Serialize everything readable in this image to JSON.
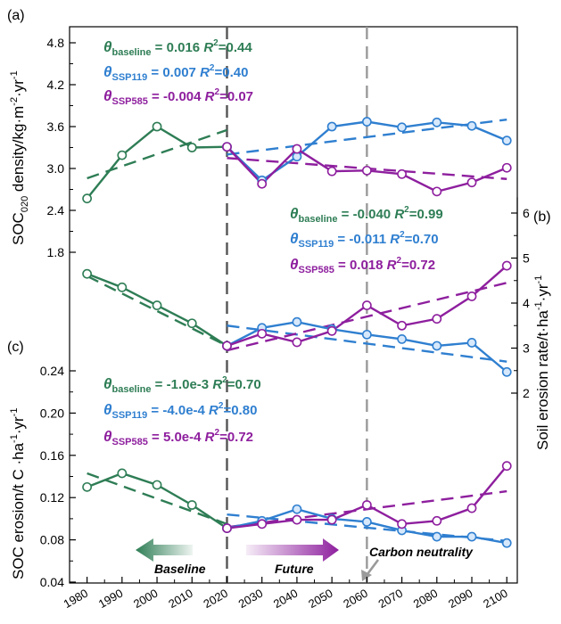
{
  "x_axis": {
    "ticks": [
      1980,
      1990,
      2000,
      2010,
      2020,
      2030,
      2040,
      2050,
      2060,
      2070,
      2080,
      2090,
      2100
    ]
  },
  "colors": {
    "baseline": "#2e7d55",
    "ssp119": "#2f7fd0",
    "ssp585": "#8e1f9e",
    "divider_dark": "#555555",
    "divider_gray": "#9a9a9a"
  },
  "annotations": {
    "baseline": "Baseline",
    "future": "Future",
    "carbon_neutrality": "Carbon neutrality"
  },
  "chart_data": [
    {
      "panel": "(a)",
      "type": "line",
      "ylabel": "SOC020 density/kg·m⁻²·yr⁻¹",
      "ylabel_main": "SOC",
      "ylabel_sub": "020",
      "ylabel_rest": " density/kg·m",
      "ylabel_sup1": "-2",
      "ylabel_mid": "·yr",
      "ylabel_sup2": "-1",
      "yticks": [
        "1.8",
        "2.4",
        "3.0",
        "3.6",
        "4.2",
        "4.8"
      ],
      "ylim": [
        1.4,
        5.0
      ],
      "series": [
        {
          "name": "baseline",
          "x": [
            1980,
            1990,
            2000,
            2010,
            2020
          ],
          "y": [
            2.57,
            3.19,
            3.6,
            3.3,
            3.31
          ]
        },
        {
          "name": "SSP119",
          "x": [
            2020,
            2030,
            2040,
            2050,
            2060,
            2070,
            2080,
            2090,
            2100
          ],
          "y": [
            3.31,
            2.83,
            3.17,
            3.6,
            3.67,
            3.59,
            3.66,
            3.61,
            3.4
          ]
        },
        {
          "name": "SSP585",
          "x": [
            2020,
            2030,
            2040,
            2050,
            2060,
            2070,
            2080,
            2090,
            2100
          ],
          "y": [
            3.31,
            2.78,
            3.28,
            2.96,
            2.97,
            2.92,
            2.67,
            2.8,
            3.01
          ]
        }
      ],
      "trends": [
        {
          "series": "baseline",
          "x": [
            1980,
            2020
          ],
          "y": [
            2.86,
            3.55
          ]
        },
        {
          "series": "SSP119",
          "x": [
            2020,
            2100
          ],
          "y": [
            3.2,
            3.7
          ]
        },
        {
          "series": "SSP585",
          "x": [
            2020,
            2100
          ],
          "y": [
            3.15,
            2.85
          ]
        }
      ],
      "stats": [
        {
          "theta": "θ",
          "sub": "baseline",
          "text": " = 0.016 ",
          "r": "R",
          "sup": "2",
          "val": "=0.44"
        },
        {
          "theta": "θ",
          "sub": "SSP119",
          "text": " = 0.007 ",
          "r": "R",
          "sup": "2",
          "val": "=0.40"
        },
        {
          "theta": "θ",
          "sub": "SSP585",
          "text": " = -0.004 ",
          "r": "R",
          "sup": "2",
          "val": "=0.07"
        }
      ]
    },
    {
      "panel": "(b)",
      "type": "line",
      "ylabel": "Soil erosion rate/t·ha⁻¹·yr⁻¹",
      "ylabel_main": "Soil erosion rate/t·ha",
      "ylabel_sup1": "-1",
      "ylabel_mid": "·yr",
      "ylabel_sup2": "-1",
      "yticks": [
        "2",
        "3",
        "4",
        "5",
        "6"
      ],
      "ylim": [
        1.7,
        6.5
      ],
      "series": [
        {
          "name": "baseline",
          "x": [
            1980,
            1990,
            2000,
            2010,
            2020
          ],
          "y": [
            4.65,
            4.35,
            3.95,
            3.55,
            3.05
          ]
        },
        {
          "name": "SSP119",
          "x": [
            2020,
            2030,
            2040,
            2050,
            2060,
            2070,
            2080,
            2090,
            2100
          ],
          "y": [
            3.05,
            3.45,
            3.58,
            3.42,
            3.3,
            3.2,
            3.05,
            3.12,
            2.47
          ]
        },
        {
          "name": "SSP585",
          "x": [
            2020,
            2030,
            2040,
            2050,
            2060,
            2070,
            2080,
            2090,
            2100
          ],
          "y": [
            3.05,
            3.32,
            3.13,
            3.38,
            3.95,
            3.5,
            3.65,
            4.15,
            4.83
          ]
        }
      ],
      "trends": [
        {
          "series": "baseline",
          "x": [
            1980,
            2020
          ],
          "y": [
            4.6,
            3.05
          ]
        },
        {
          "series": "SSP119",
          "x": [
            2020,
            2100
          ],
          "y": [
            3.5,
            2.7
          ]
        },
        {
          "series": "SSP585",
          "x": [
            2020,
            2100
          ],
          "y": [
            2.95,
            4.45
          ]
        }
      ],
      "stats": [
        {
          "theta": "θ",
          "sub": "baseline",
          "text": " = -0.040 ",
          "r": "R",
          "sup": "2",
          "val": "=0.99"
        },
        {
          "theta": "θ",
          "sub": "SSP119",
          "text": " = -0.011 ",
          "r": "R",
          "sup": "2",
          "val": "=0.70"
        },
        {
          "theta": "θ",
          "sub": "SSP585",
          "text": " = 0.018 ",
          "r": "R",
          "sup": "2",
          "val": "=0.72"
        }
      ]
    },
    {
      "panel": "(c)",
      "type": "line",
      "ylabel": "SOC erosion/t C·ha⁻¹·yr⁻¹",
      "ylabel_main": "SOC erosion/t C ·ha",
      "ylabel_sup1": "-1",
      "ylabel_mid": "·yr",
      "ylabel_sup2": "-1",
      "yticks": [
        "0.04",
        "0.08",
        "0.12",
        "0.16",
        "0.20",
        "0.24"
      ],
      "ylim": [
        0.04,
        0.27
      ],
      "series": [
        {
          "name": "baseline",
          "x": [
            1980,
            1990,
            2000,
            2010,
            2020
          ],
          "y": [
            0.13,
            0.143,
            0.132,
            0.113,
            0.091
          ]
        },
        {
          "name": "SSP119",
          "x": [
            2020,
            2030,
            2040,
            2050,
            2060,
            2070,
            2080,
            2090,
            2100
          ],
          "y": [
            0.091,
            0.098,
            0.109,
            0.1,
            0.097,
            0.089,
            0.083,
            0.083,
            0.077
          ]
        },
        {
          "name": "SSP585",
          "x": [
            2020,
            2030,
            2040,
            2050,
            2060,
            2070,
            2080,
            2090,
            2100
          ],
          "y": [
            0.091,
            0.095,
            0.099,
            0.099,
            0.113,
            0.095,
            0.098,
            0.11,
            0.15
          ]
        }
      ],
      "trends": [
        {
          "series": "baseline",
          "x": [
            1980,
            2020
          ],
          "y": [
            0.143,
            0.095
          ]
        },
        {
          "series": "SSP119",
          "x": [
            2020,
            2100
          ],
          "y": [
            0.104,
            0.079
          ]
        },
        {
          "series": "SSP585",
          "x": [
            2020,
            2100
          ],
          "y": [
            0.092,
            0.126
          ]
        }
      ],
      "stats": [
        {
          "theta": "θ",
          "sub": "baseline",
          "text": " = -1.0e-3 ",
          "r": "R",
          "sup": "2",
          "val": "=0.70"
        },
        {
          "theta": "θ",
          "sub": "SSP119",
          "text": " = -4.0e-4 ",
          "r": "R",
          "sup": "2",
          "val": "=0.80"
        },
        {
          "theta": "θ",
          "sub": "SSP585",
          "text": " = 5.0e-4 ",
          "r": "R",
          "sup": "2",
          "val": "=0.72"
        }
      ]
    }
  ]
}
